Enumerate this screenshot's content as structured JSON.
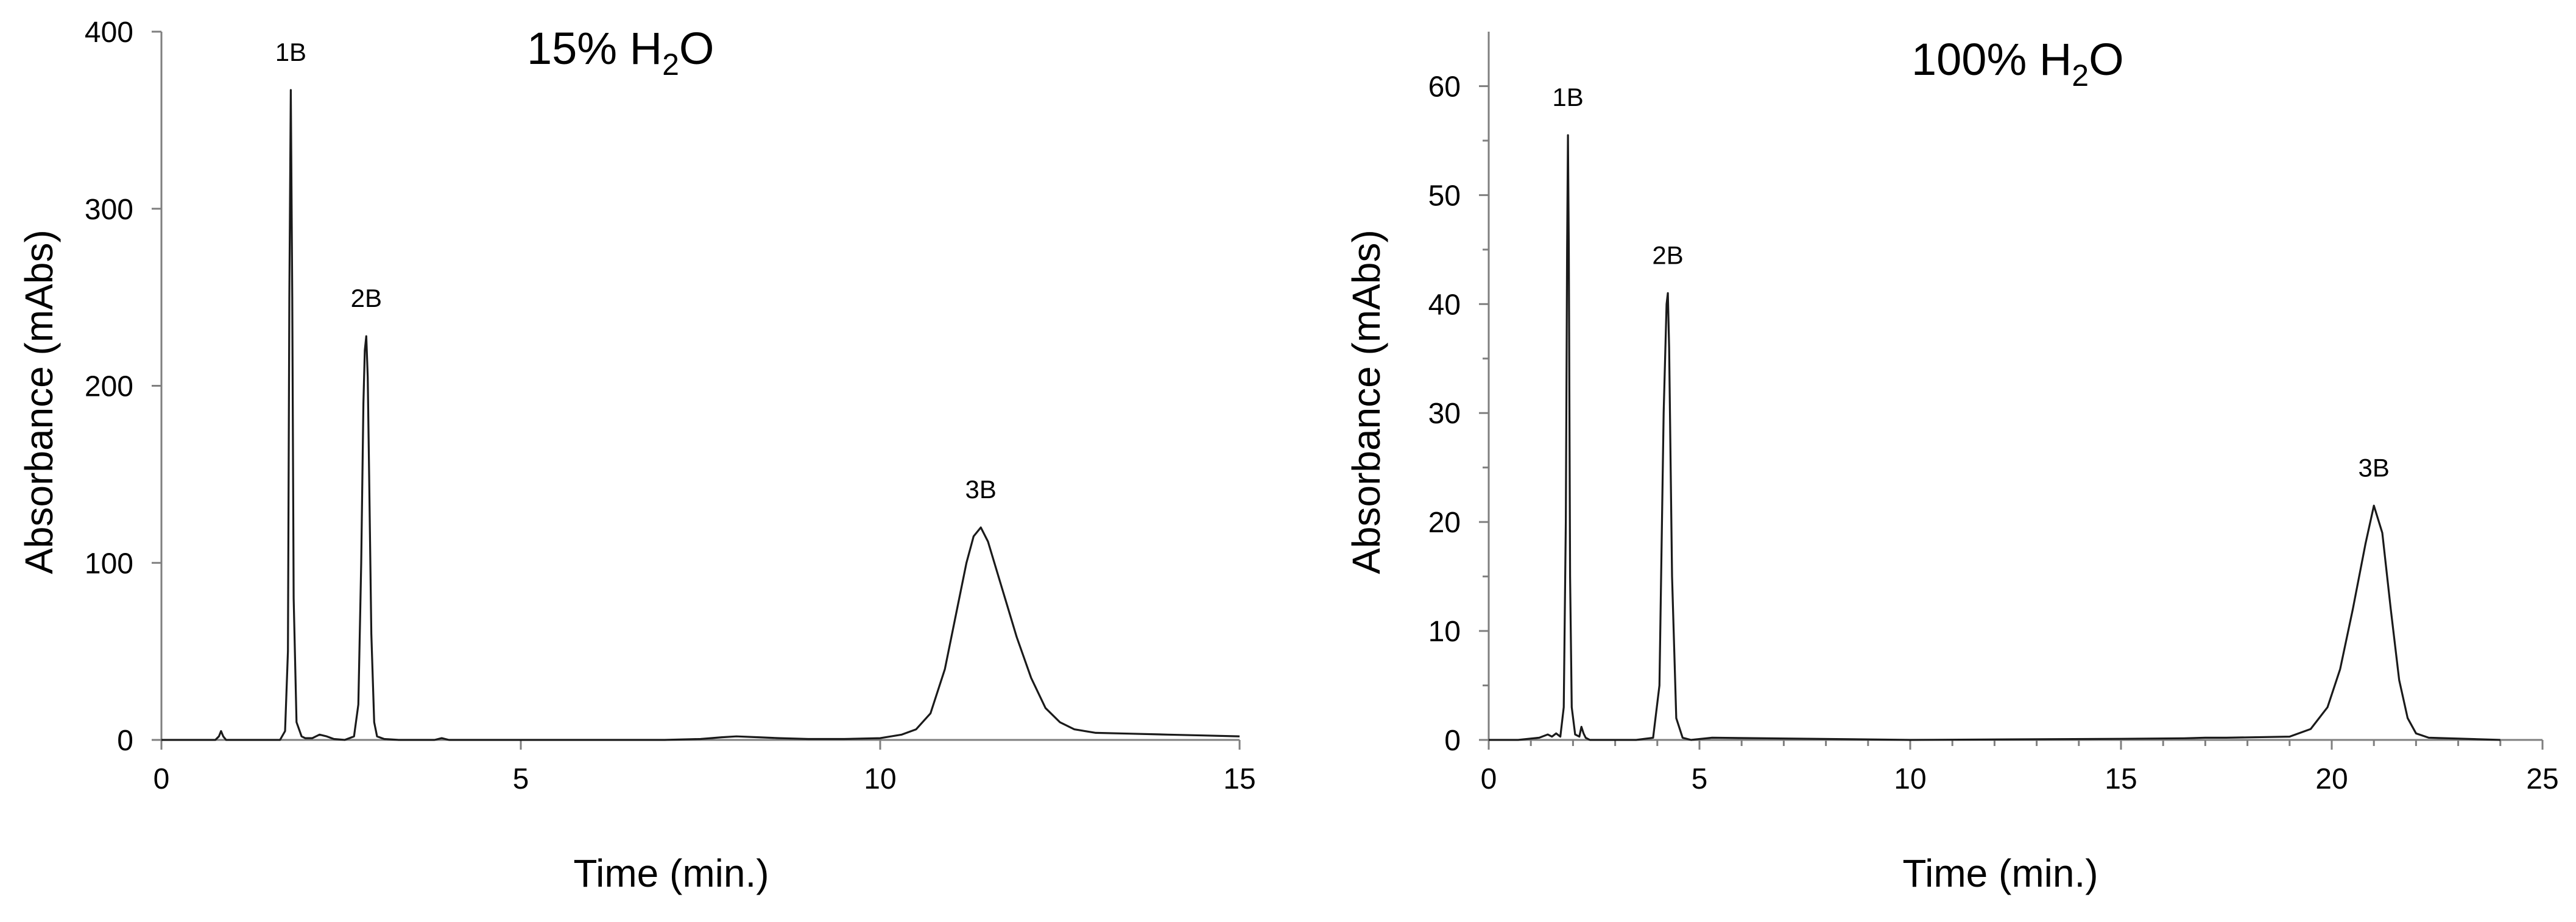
{
  "chart_data": [
    {
      "type": "line",
      "title": "15% H",
      "title_sub": "2",
      "title_suffix": "O",
      "xlabel": "Time (min.)",
      "ylabel": "Absorbance (mAbs)",
      "xlim": [
        0,
        15
      ],
      "ylim": [
        0,
        400
      ],
      "xticks": [
        0,
        5,
        10,
        15
      ],
      "xtick_labels": [
        "0",
        "5",
        "10",
        "15"
      ],
      "yticks": [
        0,
        100,
        200,
        300,
        400
      ],
      "ytick_labels": [
        "0",
        "100",
        "200",
        "300",
        "400"
      ],
      "grid": false,
      "line_color": "#1a1a1a",
      "peaks": [
        {
          "label": "1B",
          "x": 1.8,
          "y": 367
        },
        {
          "label": "2B",
          "x": 2.85,
          "y": 228
        },
        {
          "label": "3B",
          "x": 11.4,
          "y": 120
        }
      ],
      "series": [
        {
          "x": [
            0,
            0.5,
            0.75,
            0.8,
            0.83,
            0.86,
            0.9,
            1.0,
            1.4,
            1.65,
            1.72,
            1.76,
            1.78,
            1.8,
            1.82,
            1.84,
            1.88,
            1.95,
            2.0,
            2.1,
            2.2,
            2.3,
            2.4,
            2.55,
            2.68,
            2.74,
            2.78,
            2.81,
            2.83,
            2.85,
            2.87,
            2.89,
            2.92,
            2.96,
            3.0,
            3.1,
            3.3,
            3.8,
            3.9,
            4.0,
            5,
            6,
            7,
            7.5,
            7.8,
            8.0,
            8.3,
            8.6,
            9.0,
            9.5,
            10.0,
            10.3,
            10.5,
            10.7,
            10.9,
            11.05,
            11.2,
            11.3,
            11.4,
            11.5,
            11.7,
            11.9,
            12.1,
            12.3,
            12.5,
            12.7,
            13.0,
            13.5,
            14.0,
            14.5,
            15.0
          ],
          "y": [
            0,
            0,
            0,
            2,
            5,
            2,
            0,
            0,
            0,
            0,
            5,
            50,
            250,
            367,
            250,
            80,
            10,
            2,
            1,
            1,
            3,
            2,
            0.5,
            0,
            2,
            20,
            100,
            190,
            220,
            228,
            205,
            150,
            60,
            10,
            2,
            0.5,
            0,
            0,
            1,
            0,
            0,
            0,
            0,
            0.5,
            1.5,
            2,
            1.5,
            1,
            0.5,
            0.5,
            1,
            3,
            6,
            15,
            40,
            70,
            100,
            115,
            120,
            112,
            85,
            58,
            35,
            18,
            10,
            6,
            4,
            3.5,
            3,
            2.5,
            2
          ]
        }
      ]
    },
    {
      "type": "line",
      "title": "100% H",
      "title_sub": "2",
      "title_suffix": "O",
      "xlabel": "Time (min.)",
      "ylabel": "Absorbance (mAbs)",
      "xlim": [
        0,
        25
      ],
      "ylim": [
        0,
        65
      ],
      "xticks": [
        0,
        5,
        10,
        15,
        20,
        25
      ],
      "xtick_labels": [
        "0",
        "5",
        "10",
        "15",
        "20",
        "25"
      ],
      "yticks": [
        0,
        10,
        20,
        30,
        40,
        50,
        60
      ],
      "ytick_labels": [
        "0",
        "10",
        "20",
        "30",
        "40",
        "50",
        "60"
      ],
      "grid": false,
      "line_color": "#1a1a1a",
      "peaks": [
        {
          "label": "1B",
          "x": 1.88,
          "y": 55.5
        },
        {
          "label": "2B",
          "x": 4.25,
          "y": 41
        },
        {
          "label": "3B",
          "x": 21.0,
          "y": 21.5
        }
      ],
      "series": [
        {
          "x": [
            0,
            0.7,
            1.2,
            1.4,
            1.5,
            1.6,
            1.7,
            1.78,
            1.83,
            1.86,
            1.88,
            1.9,
            1.93,
            1.97,
            2.05,
            2.15,
            2.2,
            2.25,
            2.3,
            2.4,
            2.6,
            3.5,
            3.9,
            4.05,
            4.15,
            4.22,
            4.25,
            4.28,
            4.35,
            4.45,
            4.6,
            4.8,
            5.3,
            10,
            15,
            16.5,
            17.0,
            17.5,
            19.0,
            19.5,
            19.9,
            20.2,
            20.5,
            20.8,
            21.0,
            21.2,
            21.4,
            21.6,
            21.8,
            22.0,
            22.3,
            24.0
          ],
          "y": [
            0,
            0,
            0.2,
            0.5,
            0.3,
            0.6,
            0.3,
            3,
            20,
            45,
            55.5,
            45,
            15,
            3,
            0.5,
            0.3,
            1.2,
            0.6,
            0.2,
            0,
            0,
            0,
            0.2,
            5,
            30,
            40,
            41,
            36,
            15,
            2,
            0.2,
            0,
            0.2,
            0,
            0.1,
            0.15,
            0.2,
            0.2,
            0.3,
            1,
            3,
            6.5,
            12,
            18,
            21.5,
            19,
            12,
            5.5,
            2,
            0.6,
            0.2,
            0
          ]
        }
      ]
    }
  ]
}
